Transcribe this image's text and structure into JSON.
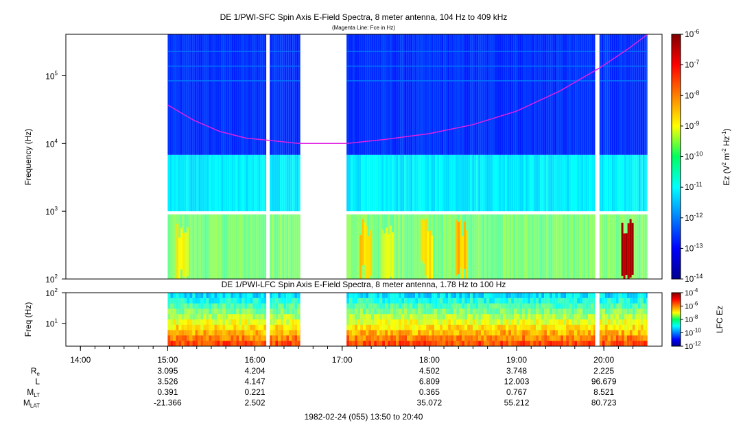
{
  "chart_data": [
    {
      "type": "heatmap",
      "title": "DE 1/PWI-SFC  Spin Axis E-Field Spectra, 8 meter antenna, 104 Hz to 409 kHz",
      "subtitle": "(Magenta Line: Fce in Hz)",
      "ylabel": "Frequency (Hz)",
      "yscale": "log",
      "ylim": [
        100,
        409000
      ],
      "yticks": [
        {
          "value": 100,
          "base": "10",
          "exp": "2"
        },
        {
          "value": 1000,
          "base": "10",
          "exp": "3"
        },
        {
          "value": 10000,
          "base": "10",
          "exp": "4"
        },
        {
          "value": 100000,
          "base": "10",
          "exp": "5"
        }
      ],
      "colorbar": {
        "label_pre": "Ez (V",
        "label_sup1": "2",
        "label_mid": " m",
        "label_sup2": "-2",
        "label_mid2": " Hz",
        "label_sup3": "-1",
        "label_post": ")",
        "scale": "log",
        "range": [
          1e-14,
          1e-06
        ],
        "ticks": [
          {
            "value": 1e-06,
            "base": "10",
            "exp": "-6"
          },
          {
            "value": 1e-07,
            "base": "10",
            "exp": "-7"
          },
          {
            "value": 1e-08,
            "base": "10",
            "exp": "-8"
          },
          {
            "value": 1e-09,
            "base": "10",
            "exp": "-9"
          },
          {
            "value": 1e-10,
            "base": "10",
            "exp": "-10"
          },
          {
            "value": 1e-11,
            "base": "10",
            "exp": "-11"
          },
          {
            "value": 1e-12,
            "base": "10",
            "exp": "-12"
          },
          {
            "value": 1e-13,
            "base": "10",
            "exp": "-13"
          },
          {
            "value": 1e-14,
            "base": "10",
            "exp": "-14"
          }
        ]
      },
      "data_segments_hours": [
        [
          15.0,
          16.13
        ],
        [
          16.17,
          16.52
        ],
        [
          17.05,
          19.9
        ],
        [
          19.95,
          20.5
        ]
      ],
      "fce_line_color": "#e020e0",
      "fce_hz": [
        {
          "t": 15.0,
          "f": 37000
        },
        {
          "t": 15.3,
          "f": 22000
        },
        {
          "t": 15.6,
          "f": 15000
        },
        {
          "t": 15.9,
          "f": 12000
        },
        {
          "t": 16.2,
          "f": 11000
        },
        {
          "t": 16.5,
          "f": 10000
        },
        {
          "t": 17.05,
          "f": 10000
        },
        {
          "t": 17.5,
          "f": 11500
        },
        {
          "t": 18.0,
          "f": 14000
        },
        {
          "t": 18.5,
          "f": 19000
        },
        {
          "t": 19.0,
          "f": 30000
        },
        {
          "t": 19.5,
          "f": 60000
        },
        {
          "t": 19.95,
          "f": 130000
        },
        {
          "t": 20.3,
          "f": 260000
        },
        {
          "t": 20.5,
          "f": 409000
        }
      ]
    },
    {
      "type": "heatmap",
      "title": "DE 1/PWI-LFC  Spin Axis E-Field Spectra, 8 meter antenna, 1.78 Hz to 100 Hz",
      "ylabel": "Freq (Hz)",
      "yscale": "log",
      "ylim": [
        1.78,
        100
      ],
      "yticks": [
        {
          "value": 10,
          "base": "10",
          "exp": "1"
        },
        {
          "value": 100,
          "base": "10",
          "exp": "2"
        }
      ],
      "colorbar": {
        "label": "LFC Ez",
        "scale": "log",
        "range": [
          1e-12,
          0.0001
        ],
        "ticks": [
          {
            "value": 0.0001,
            "base": "10",
            "exp": "-4"
          },
          {
            "value": 1e-06,
            "base": "10",
            "exp": "-6"
          },
          {
            "value": 1e-08,
            "base": "10",
            "exp": "-8"
          },
          {
            "value": 1e-10,
            "base": "10",
            "exp": "-10"
          },
          {
            "value": 1e-12,
            "base": "10",
            "exp": "-12"
          }
        ]
      },
      "data_segments_hours": [
        [
          15.0,
          16.13
        ],
        [
          16.17,
          16.52
        ],
        [
          17.05,
          19.9
        ],
        [
          19.95,
          20.5
        ]
      ]
    }
  ],
  "time_axis": {
    "range_hours": [
      13.833,
      20.667
    ],
    "ticks": [
      {
        "value": 14,
        "label": "14:00"
      },
      {
        "value": 15,
        "label": "15:00"
      },
      {
        "value": 16,
        "label": "16:00"
      },
      {
        "value": 17,
        "label": "17:00"
      },
      {
        "value": 18,
        "label": "18:00"
      },
      {
        "value": 19,
        "label": "19:00"
      },
      {
        "value": 20,
        "label": "20:00"
      }
    ]
  },
  "ephemeris": {
    "rows": [
      {
        "name": "R",
        "sub": "e",
        "values": [
          {
            "t": 15,
            "v": "3.095"
          },
          {
            "t": 16,
            "v": "4.204"
          },
          {
            "t": 18,
            "v": "4.502"
          },
          {
            "t": 19,
            "v": "3.748"
          },
          {
            "t": 20,
            "v": "2.225"
          }
        ]
      },
      {
        "name": "L",
        "sub": "",
        "values": [
          {
            "t": 15,
            "v": "3.526"
          },
          {
            "t": 16,
            "v": "4.147"
          },
          {
            "t": 18,
            "v": "6.809"
          },
          {
            "t": 19,
            "v": "12.003"
          },
          {
            "t": 20,
            "v": "96.679"
          }
        ]
      },
      {
        "name": "M",
        "sub": "LT",
        "values": [
          {
            "t": 15,
            "v": "0.391"
          },
          {
            "t": 16,
            "v": "0.221"
          },
          {
            "t": 18,
            "v": "0.365"
          },
          {
            "t": 19,
            "v": "0.767"
          },
          {
            "t": 20,
            "v": "8.521"
          }
        ]
      },
      {
        "name": "M",
        "sub": "LAT",
        "values": [
          {
            "t": 15,
            "v": "-21.366"
          },
          {
            "t": 16,
            "v": "2.502"
          },
          {
            "t": 18,
            "v": "35.072"
          },
          {
            "t": 19,
            "v": "55.212"
          },
          {
            "t": 20,
            "v": "80.723"
          }
        ]
      }
    ]
  },
  "footer": "1982-02-24 (055) 13:50 to 20:40"
}
